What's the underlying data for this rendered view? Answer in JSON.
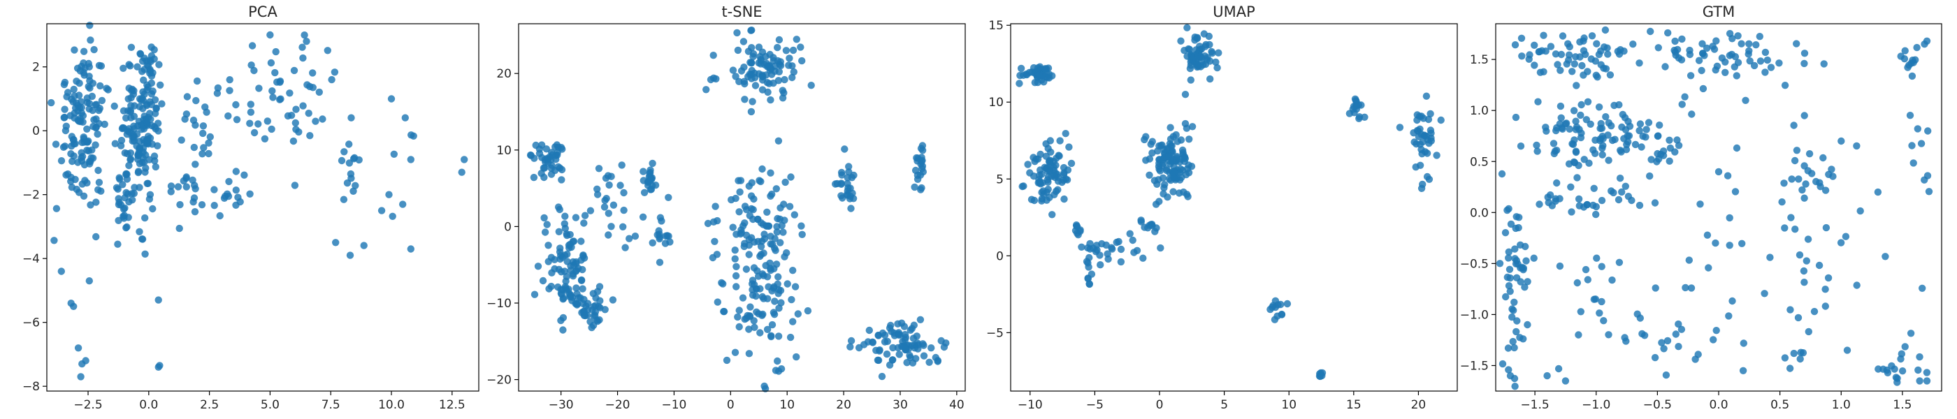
{
  "colors": {
    "point": "#1f77b4",
    "frame": "#000000",
    "background": "#ffffff"
  },
  "chart_data": [
    {
      "type": "scatter",
      "title": "PCA",
      "xlim": [
        -4.2,
        13.6
      ],
      "ylim": [
        -8.15,
        3.35
      ],
      "xticks": [
        -2.5,
        0.0,
        2.5,
        5.0,
        7.5,
        10.0,
        12.5
      ],
      "xticklabels": [
        "−2.5",
        "0.0",
        "2.5",
        "5.0",
        "7.5",
        "10.0",
        "12.5"
      ],
      "yticks": [
        -8,
        -6,
        -4,
        -2,
        0,
        2
      ],
      "yticklabels": [
        "−8",
        "−6",
        "−4",
        "−2",
        "0",
        "2"
      ],
      "grid": false,
      "clusters": [
        {
          "cx": -2.7,
          "cy": 0.6,
          "sx": 0.55,
          "sy": 1.1,
          "n": 110
        },
        {
          "cx": -2.6,
          "cy": -1.4,
          "sx": 0.5,
          "sy": 1.0,
          "n": 25
        },
        {
          "cx": -0.5,
          "cy": -0.4,
          "sx": 0.4,
          "sy": 1.1,
          "n": 130
        },
        {
          "cx": 0.1,
          "cy": 1.2,
          "sx": 0.2,
          "sy": 0.8,
          "n": 45
        },
        {
          "cx": -1.0,
          "cy": -2.0,
          "sx": 0.45,
          "sy": 0.5,
          "n": 20
        },
        {
          "cx": 1.8,
          "cy": -1.5,
          "sx": 0.6,
          "sy": 0.6,
          "n": 22
        },
        {
          "cx": 2.3,
          "cy": 0.4,
          "sx": 0.45,
          "sy": 0.45,
          "n": 15
        },
        {
          "cx": 3.3,
          "cy": -2.0,
          "sx": 0.6,
          "sy": 0.4,
          "n": 14
        },
        {
          "cx": 5.6,
          "cy": 0.9,
          "sx": 0.9,
          "sy": 1.0,
          "n": 40
        },
        {
          "cx": 8.4,
          "cy": -0.9,
          "sx": 0.5,
          "sy": 0.6,
          "n": 14
        },
        {
          "cx": 4.6,
          "cy": 1.6,
          "sx": 1.2,
          "sy": 0.8,
          "n": 15
        },
        {
          "cx": 10.5,
          "cy": -1.5,
          "sx": 1.0,
          "sy": 1.3,
          "n": 7
        }
      ],
      "points": [
        [
          -3.6,
          -4.4
        ],
        [
          -3.1,
          -5.5
        ],
        [
          -2.9,
          -6.8
        ],
        [
          -2.75,
          -7.3
        ],
        [
          -2.8,
          -7.7
        ],
        [
          -2.6,
          -7.2
        ],
        [
          -2.45,
          -4.7
        ],
        [
          -3.2,
          -5.4
        ],
        [
          0.4,
          -5.3
        ],
        [
          0.45,
          -7.35
        ],
        [
          0.4,
          -7.4
        ],
        [
          12.9,
          -1.3
        ],
        [
          13.0,
          -0.9
        ],
        [
          10.8,
          -0.9
        ],
        [
          10.8,
          -3.7
        ],
        [
          7.7,
          -3.5
        ],
        [
          8.3,
          -3.9
        ],
        [
          9.6,
          -2.5
        ],
        [
          9.9,
          -2.0
        ],
        [
          5.0,
          3.0
        ],
        [
          6.5,
          2.8
        ],
        [
          10.0,
          1.0
        ]
      ]
    },
    {
      "type": "scatter",
      "title": "t-SNE",
      "xlim": [
        -37.5,
        41.5
      ],
      "ylim": [
        -21.5,
        26.5
      ],
      "xticks": [
        -30,
        -20,
        -10,
        0,
        10,
        20,
        30,
        40
      ],
      "xticklabels": [
        "−30",
        "−20",
        "−10",
        "0",
        "10",
        "20",
        "30",
        "40"
      ],
      "yticks": [
        -20,
        -10,
        0,
        10,
        20
      ],
      "yticklabels": [
        "−20",
        "−10",
        "0",
        "10",
        "20"
      ],
      "grid": false,
      "clusters": [
        {
          "cx": 6.5,
          "cy": 20.5,
          "sx": 3.3,
          "sy": 2.0,
          "n": 90
        },
        {
          "cx": -32,
          "cy": 8.7,
          "sx": 1.5,
          "sy": 1.5,
          "n": 40
        },
        {
          "cx": -29,
          "cy": -5.5,
          "sx": 2.2,
          "sy": 3.6,
          "n": 90
        },
        {
          "cx": -25,
          "cy": -10.5,
          "sx": 2.0,
          "sy": 1.2,
          "n": 35
        },
        {
          "cx": 5,
          "cy": -5,
          "sx": 3.5,
          "sy": 6.0,
          "n": 170
        },
        {
          "cx": 30,
          "cy": -15.5,
          "sx": 4.0,
          "sy": 1.5,
          "n": 80
        },
        {
          "cx": 20.3,
          "cy": 5.5,
          "sx": 0.7,
          "sy": 1.7,
          "n": 25
        },
        {
          "cx": 33.5,
          "cy": 8.5,
          "sx": 0.5,
          "sy": 1.6,
          "n": 20
        },
        {
          "cx": -14.5,
          "cy": 6.3,
          "sx": 0.6,
          "sy": 1.1,
          "n": 20
        },
        {
          "cx": -22,
          "cy": 4.0,
          "sx": 1.2,
          "sy": 2.0,
          "n": 12
        },
        {
          "cx": -18,
          "cy": 2.8,
          "sx": 1.5,
          "sy": 2.3,
          "n": 12
        },
        {
          "cx": -12,
          "cy": -1.2,
          "sx": 1.0,
          "sy": 1.4,
          "n": 14
        }
      ],
      "points": [
        [
          -3.5,
          19.2
        ],
        [
          -3.0,
          19.4
        ],
        [
          -2.6,
          19.3
        ],
        [
          8.0,
          -18.8
        ],
        [
          9.0,
          -18.6
        ],
        [
          8.5,
          -18.9
        ],
        [
          1.0,
          -1.0
        ],
        [
          -3.0,
          0.6
        ],
        [
          1.8,
          6.0
        ],
        [
          -11.0,
          3.8
        ],
        [
          -4.0,
          0.4
        ]
      ]
    },
    {
      "type": "scatter",
      "title": "UMAP",
      "xlim": [
        -11.5,
        23.0
      ],
      "ylim": [
        -8.8,
        15.1
      ],
      "xticks": [
        -10,
        -5,
        0,
        5,
        10,
        15,
        20
      ],
      "xticklabels": [
        "−10",
        "−5",
        "0",
        "5",
        "10",
        "15",
        "20"
      ],
      "yticks": [
        -5,
        0,
        5,
        10,
        15
      ],
      "yticklabels": [
        "−5",
        "0",
        "5",
        "10",
        "15"
      ],
      "grid": false,
      "clusters": [
        {
          "cx": -9.5,
          "cy": 11.9,
          "sx": 0.6,
          "sy": 0.25,
          "n": 45
        },
        {
          "cx": 3.0,
          "cy": 13.0,
          "sx": 0.7,
          "sy": 0.8,
          "n": 60
        },
        {
          "cx": -8.5,
          "cy": 5.4,
          "sx": 0.8,
          "sy": 1.1,
          "n": 80
        },
        {
          "cx": 0.8,
          "cy": 6.0,
          "sx": 0.9,
          "sy": 1.1,
          "n": 110
        },
        {
          "cx": -4.0,
          "cy": 0.5,
          "sx": 1.5,
          "sy": 0.4,
          "n": 25
        },
        {
          "cx": -5.5,
          "cy": -0.9,
          "sx": 0.2,
          "sy": 0.6,
          "n": 10
        },
        {
          "cx": -6.4,
          "cy": 1.6,
          "sx": 0.2,
          "sy": 0.3,
          "n": 8
        },
        {
          "cx": -0.8,
          "cy": 1.8,
          "sx": 0.4,
          "sy": 0.3,
          "n": 10
        },
        {
          "cx": 15.2,
          "cy": 9.5,
          "sx": 0.25,
          "sy": 0.4,
          "n": 15
        },
        {
          "cx": 20.3,
          "cy": 7.6,
          "sx": 0.5,
          "sy": 1.3,
          "n": 40
        },
        {
          "cx": 9.2,
          "cy": -3.6,
          "sx": 0.5,
          "sy": 0.3,
          "n": 12
        },
        {
          "cx": 12.4,
          "cy": -7.7,
          "sx": 0.1,
          "sy": 0.1,
          "n": 6
        }
      ],
      "points": [
        [
          2.0,
          8.6
        ],
        [
          2.1,
          8.3
        ],
        [
          2.0,
          10.5
        ]
      ]
    },
    {
      "type": "scatter",
      "title": "GTM",
      "xlim": [
        -1.82,
        1.82
      ],
      "ylim": [
        -1.75,
        1.85
      ],
      "xticks": [
        -1.5,
        -1.0,
        -0.5,
        0.0,
        0.5,
        1.0,
        1.5
      ],
      "xticklabels": [
        "−1.5",
        "−1.0",
        "−0.5",
        "0.0",
        "0.5",
        "1.0",
        "1.5"
      ],
      "yticks": [
        -1.5,
        -1.0,
        -0.5,
        0.0,
        0.5,
        1.0,
        1.5
      ],
      "yticklabels": [
        "−1.5",
        "−1.0",
        "−0.5",
        "0.0",
        "0.5",
        "1.0",
        "1.5"
      ],
      "grid": false,
      "clusters": [
        {
          "cx": -1.2,
          "cy": 1.55,
          "sx": 0.25,
          "sy": 0.12,
          "n": 60
        },
        {
          "cx": 0.05,
          "cy": 1.5,
          "sx": 0.35,
          "sy": 0.14,
          "n": 60
        },
        {
          "cx": -1.0,
          "cy": 0.75,
          "sx": 0.25,
          "sy": 0.2,
          "n": 90
        },
        {
          "cx": -0.5,
          "cy": 0.7,
          "sx": 0.1,
          "sy": 0.12,
          "n": 20
        },
        {
          "cx": -1.65,
          "cy": -0.6,
          "sx": 0.06,
          "sy": 0.6,
          "n": 55
        },
        {
          "cx": -1.0,
          "cy": 0.1,
          "sx": 0.3,
          "sy": 0.08,
          "n": 25
        },
        {
          "cx": -1.05,
          "cy": -0.9,
          "sx": 0.3,
          "sy": 0.25,
          "n": 20
        },
        {
          "cx": 0.8,
          "cy": 0.4,
          "sx": 0.2,
          "sy": 0.12,
          "n": 20
        },
        {
          "cx": 1.5,
          "cy": -1.55,
          "sx": 0.08,
          "sy": 0.1,
          "n": 20
        },
        {
          "cx": 1.55,
          "cy": 1.45,
          "sx": 0.05,
          "sy": 0.15,
          "n": 12
        },
        {
          "cx": 1.65,
          "cy": 0.6,
          "sx": 0.05,
          "sy": 0.2,
          "n": 8
        },
        {
          "cx": 0.3,
          "cy": -0.4,
          "sx": 0.6,
          "sy": 0.6,
          "n": 55
        },
        {
          "cx": 0.6,
          "cy": -1.4,
          "sx": 0.08,
          "sy": 0.05,
          "n": 6
        },
        {
          "cx": -0.4,
          "cy": -1.2,
          "sx": 0.3,
          "sy": 0.2,
          "n": 12
        }
      ],
      "points": [
        [
          1.7,
          1.68
        ],
        [
          1.68,
          1.65
        ],
        [
          -0.3,
          1.7
        ],
        [
          -0.7,
          1.65
        ],
        [
          1.0,
          0.7
        ],
        [
          0.7,
          0.95
        ],
        [
          1.3,
          0.2
        ],
        [
          0.2,
          -1.55
        ],
        [
          0.0,
          0.4
        ],
        [
          1.7,
          -1.65
        ],
        [
          -1.7,
          -1.6
        ],
        [
          -1.4,
          -1.6
        ],
        [
          -1.25,
          -1.65
        ],
        [
          1.05,
          -1.35
        ]
      ]
    }
  ]
}
